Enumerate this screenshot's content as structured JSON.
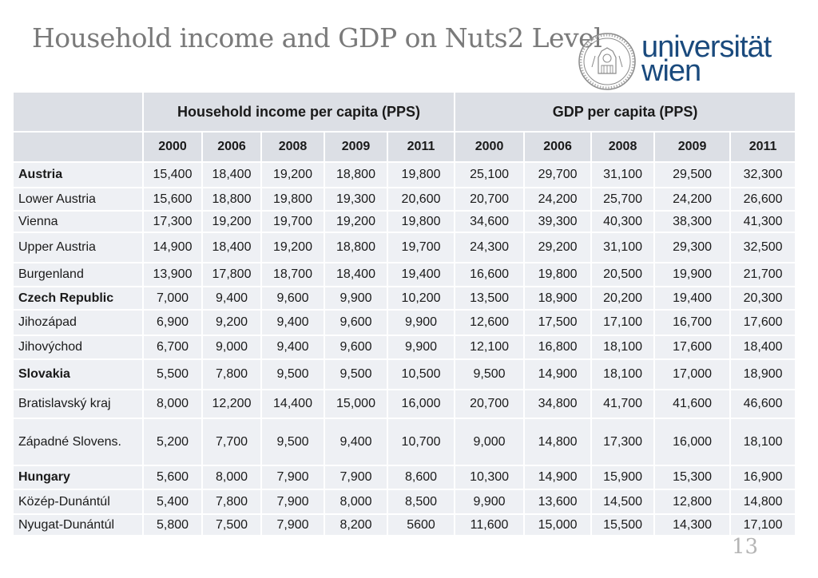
{
  "title": "Household income and GDP on Nuts2 Level",
  "logo": {
    "line1": "universität",
    "line2": "wien",
    "color": "#1a4a7d"
  },
  "table": {
    "group_headers": [
      "Household income per capita (PPS)",
      "GDP per capita (PPS)"
    ],
    "years": [
      "2000",
      "2006",
      "2008",
      "2009",
      "2011",
      "2000",
      "2006",
      "2008",
      "2009",
      "2011"
    ],
    "rows": [
      {
        "name": "Austria",
        "country": true,
        "values": [
          "15,400",
          "18,400",
          "19,200",
          "18,800",
          "19,800",
          "25,100",
          "29,700",
          "31,100",
          "29,500",
          "32,300"
        ]
      },
      {
        "name": "Lower Austria",
        "country": false,
        "values": [
          "15,600",
          "18,800",
          "19,800",
          "19,300",
          "20,600",
          "20,700",
          "24,200",
          "25,700",
          "24,200",
          "26,600"
        ]
      },
      {
        "name": "Vienna",
        "country": false,
        "values": [
          "17,300",
          "19,200",
          "19,700",
          "19,200",
          "19,800",
          "34,600",
          "39,300",
          "40,300",
          "38,300",
          "41,300"
        ]
      },
      {
        "name": "Upper Austria",
        "country": false,
        "values": [
          "14,900",
          "18,400",
          "19,200",
          "18,800",
          "19,700",
          "24,300",
          "29,200",
          "31,100",
          "29,300",
          "32,500"
        ]
      },
      {
        "name": "Burgenland",
        "country": false,
        "values": [
          "13,900",
          "17,800",
          "18,700",
          "18,400",
          "19,400",
          "16,600",
          "19,800",
          "20,500",
          "19,900",
          "21,700"
        ]
      },
      {
        "name": "Czech Republic",
        "country": true,
        "values": [
          "7,000",
          "9,400",
          "9,600",
          "9,900",
          "10,200",
          "13,500",
          "18,900",
          "20,200",
          "19,400",
          "20,300"
        ]
      },
      {
        "name": "Jihozápad",
        "country": false,
        "values": [
          "6,900",
          "9,200",
          "9,400",
          "9,600",
          "9,900",
          "12,600",
          "17,500",
          "17,100",
          "16,700",
          "17,600"
        ]
      },
      {
        "name": "Jihovýchod",
        "country": false,
        "values": [
          "6,700",
          "9,000",
          "9,400",
          "9,600",
          "9,900",
          "12,100",
          "16,800",
          "18,100",
          "17,600",
          "18,400"
        ]
      },
      {
        "name": "Slovakia",
        "country": true,
        "values": [
          "5,500",
          "7,800",
          "9,500",
          "9,500",
          "10,500",
          "9,500",
          "14,900",
          "18,100",
          "17,000",
          "18,900"
        ]
      },
      {
        "name": "Bratislavský kraj",
        "country": false,
        "values": [
          "8,000",
          "12,200",
          "14,400",
          "15,000",
          "16,000",
          "20,700",
          "34,800",
          "41,700",
          "41,600",
          "46,600"
        ]
      },
      {
        "name": "Západné Slovens.",
        "country": false,
        "values": [
          "5,200",
          "7,700",
          "9,500",
          "9,400",
          "10,700",
          "9,000",
          "14,800",
          "17,300",
          "16,000",
          "18,100"
        ]
      },
      {
        "name": "Hungary",
        "country": true,
        "values": [
          "5,600",
          "8,000",
          "7,900",
          "7,900",
          "8,600",
          "10,300",
          "14,900",
          "15,900",
          "15,300",
          "16,900"
        ]
      },
      {
        "name": "Közép-Dunántúl",
        "country": false,
        "values": [
          "5,400",
          "7,800",
          "7,900",
          "8,000",
          "8,500",
          "9,900",
          "13,600",
          "14,500",
          "12,800",
          "14,800"
        ]
      },
      {
        "name": "Nyugat-Dunántúl",
        "country": false,
        "values": [
          "5,800",
          "7,500",
          "7,900",
          "8,200",
          "5600",
          "11,600",
          "15,000",
          "15,500",
          "14,300",
          "17,100"
        ]
      }
    ]
  },
  "page_number": "13"
}
